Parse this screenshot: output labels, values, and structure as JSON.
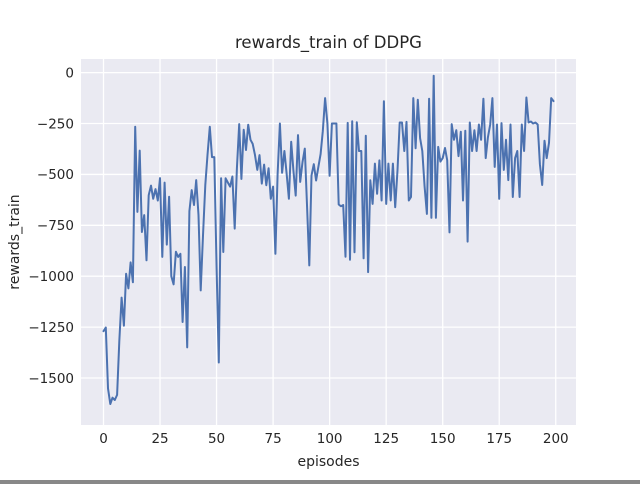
{
  "figure": {
    "title": "rewards_train of DDPG",
    "background_color": "#ffffff",
    "axes_background_color": "#eaeaf2",
    "grid_color": "#ffffff",
    "line_color": "#4c72b0",
    "text_color": "#262626"
  },
  "chart_data": {
    "type": "line",
    "title": "rewards_train of DDPG",
    "xlabel": "episodes",
    "ylabel": "rewards_train",
    "grid": true,
    "legend": false,
    "x_ticks": [
      0,
      25,
      50,
      75,
      100,
      125,
      150,
      175,
      200
    ],
    "x_tick_labels": [
      "0",
      "25",
      "50",
      "75",
      "100",
      "125",
      "150",
      "175",
      "200"
    ],
    "y_ticks": [
      0,
      -250,
      -500,
      -750,
      -1000,
      -1250,
      -1500
    ],
    "y_tick_labels": [
      "0",
      "−250",
      "−500",
      "−750",
      "−1000",
      "−1250",
      "−1500"
    ],
    "xlim": [
      -9.95,
      208.95
    ],
    "ylim": [
      -1731,
      67
    ],
    "series": [
      {
        "name": "rewards_train",
        "color": "#4c72b0",
        "x_start": 0,
        "x_step": 1,
        "values": [
          -1270,
          -1252,
          -1551,
          -1628,
          -1597,
          -1608,
          -1583,
          -1320,
          -1105,
          -1243,
          -988,
          -1060,
          -932,
          -1030,
          -266,
          -684,
          -383,
          -783,
          -700,
          -922,
          -602,
          -555,
          -620,
          -572,
          -628,
          -518,
          -905,
          -540,
          -845,
          -610,
          -1000,
          -1040,
          -880,
          -905,
          -890,
          -1225,
          -955,
          -1350,
          -680,
          -577,
          -650,
          -528,
          -700,
          -1070,
          -800,
          -552,
          -404,
          -266,
          -415,
          -415,
          -960,
          -1424,
          -519,
          -881,
          -519,
          -540,
          -560,
          -510,
          -766,
          -470,
          -253,
          -522,
          -281,
          -380,
          -256,
          -330,
          -350,
          -405,
          -478,
          -405,
          -545,
          -452,
          -553,
          -470,
          -620,
          -560,
          -890,
          -500,
          -250,
          -492,
          -385,
          -500,
          -620,
          -340,
          -480,
          -604,
          -307,
          -537,
          -440,
          -373,
          -650,
          -947,
          -505,
          -450,
          -530,
          -465,
          -400,
          -287,
          -125,
          -250,
          -507,
          -250,
          -250,
          -250,
          -648,
          -656,
          -650,
          -904,
          -247,
          -919,
          -239,
          -882,
          -244,
          -385,
          -385,
          -912,
          -310,
          -980,
          -529,
          -645,
          -447,
          -595,
          -431,
          -628,
          -141,
          -645,
          -447,
          -628,
          -447,
          -661,
          -480,
          -245,
          -245,
          -385,
          -242,
          -628,
          -611,
          -125,
          -371,
          -133,
          -322,
          -385,
          -560,
          -694,
          -128,
          -713,
          -15,
          -713,
          -365,
          -437,
          -420,
          -370,
          -430,
          -785,
          -253,
          -330,
          -283,
          -410,
          -290,
          -628,
          -285,
          -830,
          -245,
          -385,
          -283,
          -385,
          -255,
          -330,
          -128,
          -420,
          -318,
          -255,
          -125,
          -463,
          -255,
          -620,
          -248,
          -478,
          -330,
          -528,
          -255,
          -611,
          -420,
          -385,
          -611,
          -255,
          -385,
          -122,
          -245,
          -240,
          -250,
          -245,
          -255,
          -450,
          -552,
          -335,
          -420,
          -345,
          -125,
          -140
        ]
      }
    ]
  }
}
